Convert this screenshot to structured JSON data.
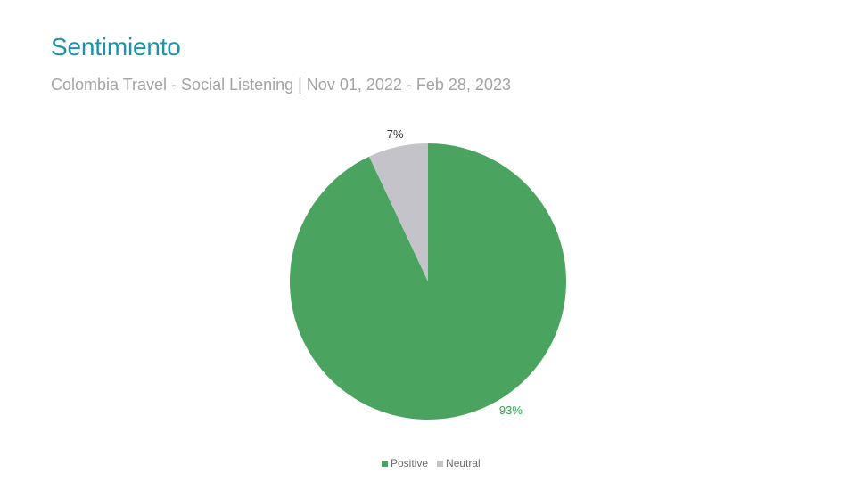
{
  "page": {
    "title": "Sentimiento",
    "subtitle": "Colombia Travel - Social Listening | Nov 01, 2022 - Feb 28, 2023"
  },
  "chart_data": {
    "type": "pie",
    "title": "",
    "slices": [
      {
        "name": "Positive",
        "value": 93,
        "label": "93%",
        "color": "#4aa35e",
        "label_color": "#2aa84a"
      },
      {
        "name": "Neutral",
        "value": 7,
        "label": "7%",
        "color": "#c4c3c9",
        "label_color": "#333333"
      }
    ],
    "legend": {
      "placement": "bottom-center",
      "entries": [
        "Positive",
        "Neutral"
      ]
    }
  }
}
